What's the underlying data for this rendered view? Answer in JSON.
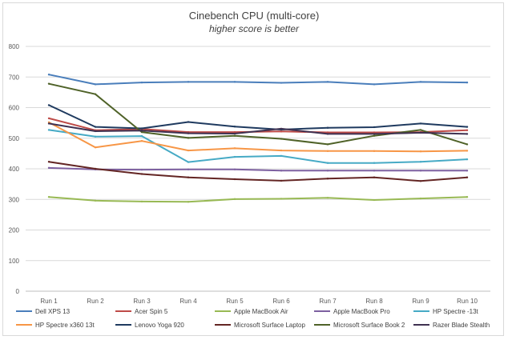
{
  "chart_data": {
    "type": "line",
    "title": "Cinebench CPU (multi-core)",
    "subtitle": "higher score is better",
    "xlabel": "",
    "ylabel": "",
    "categories": [
      "Run 1",
      "Run 2",
      "Run 3",
      "Run 4",
      "Run 5",
      "Run 6",
      "Run 7",
      "Run 8",
      "Run 9",
      "Run 10"
    ],
    "ylim": [
      0,
      800
    ],
    "yticks": [
      0,
      100,
      200,
      300,
      400,
      500,
      600,
      700,
      800
    ],
    "grid": true,
    "legend_position": "bottom",
    "series": [
      {
        "name": "Dell XPS 13",
        "color": "#4a7ebb",
        "values": [
          708,
          676,
          682,
          684,
          684,
          681,
          684,
          676,
          684,
          682
        ]
      },
      {
        "name": "Acer Spin 5",
        "color": "#be4b48",
        "values": [
          565,
          526,
          530,
          520,
          520,
          522,
          519,
          519,
          520,
          526
        ]
      },
      {
        "name": "Apple MacBook Air",
        "color": "#98b954",
        "values": [
          308,
          296,
          293,
          292,
          301,
          302,
          305,
          298,
          303,
          308
        ]
      },
      {
        "name": "Apple MacBook Pro",
        "color": "#7d60a0",
        "values": [
          403,
          398,
          397,
          398,
          398,
          394,
          394,
          394,
          394,
          394
        ]
      },
      {
        "name": "HP Spectre -13t",
        "color": "#46aac5",
        "values": [
          527,
          505,
          507,
          422,
          439,
          442,
          419,
          419,
          423,
          431
        ]
      },
      {
        "name": "HP Spectre x360  13t",
        "color": "#f79646",
        "values": [
          552,
          470,
          491,
          460,
          467,
          460,
          458,
          458,
          457,
          459
        ]
      },
      {
        "name": "Lenovo Yoga 920",
        "color": "#1f3a5f",
        "values": [
          608,
          537,
          532,
          553,
          538,
          528,
          534,
          536,
          548,
          537
        ]
      },
      {
        "name": "Microsoft Surface Laptop",
        "color": "#632523",
        "values": [
          423,
          400,
          383,
          372,
          366,
          361,
          368,
          372,
          360,
          372
        ]
      },
      {
        "name": "Microsoft Surface Book 2",
        "color": "#4f6228",
        "values": [
          678,
          644,
          520,
          501,
          508,
          498,
          480,
          508,
          527,
          480
        ]
      },
      {
        "name": "Razer Blade Stealth",
        "color": "#3f3151",
        "values": [
          548,
          523,
          525,
          516,
          515,
          531,
          514,
          514,
          518,
          514
        ]
      }
    ]
  }
}
